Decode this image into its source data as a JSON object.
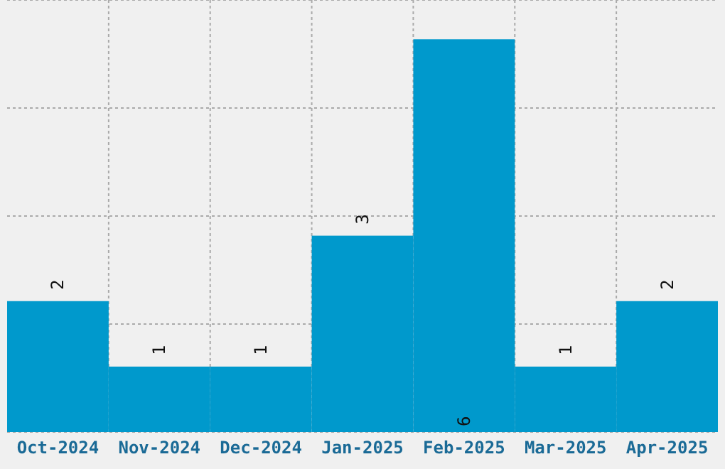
{
  "chart_data": {
    "type": "bar",
    "categories": [
      "Oct-2024",
      "Nov-2024",
      "Dec-2024",
      "Jan-2025",
      "Feb-2025",
      "Mar-2025",
      "Apr-2025"
    ],
    "values": [
      2,
      1,
      1,
      3,
      6,
      1,
      2
    ],
    "color": "#0099cc",
    "ylim": [
      0,
      6.6
    ],
    "yticks": [
      {
        "value": 0,
        "label": null
      },
      {
        "value": 1.65,
        "label": null
      },
      {
        "value": 3.3,
        "label": null
      },
      {
        "value": 4.95,
        "label": null
      },
      {
        "value": 6.6,
        "label": null
      }
    ],
    "tick_labels": "x",
    "grid": true,
    "data_labels": true
  }
}
